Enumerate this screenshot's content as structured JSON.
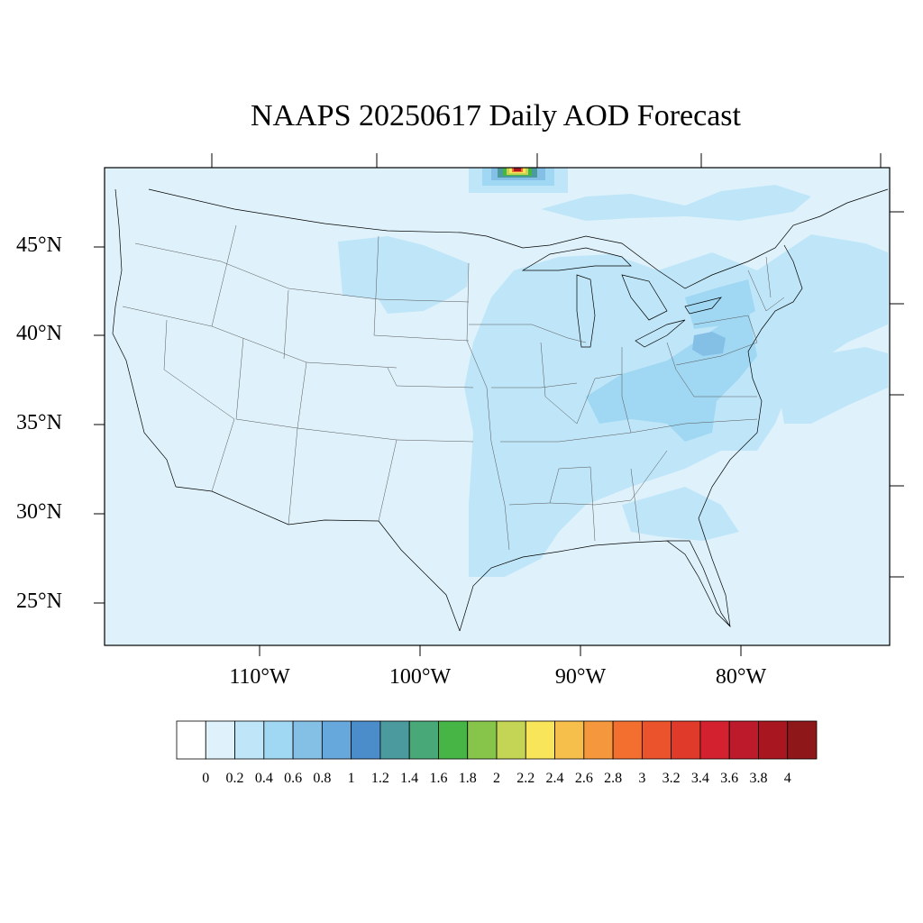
{
  "title": "NAAPS 20250617 Daily AOD Forecast",
  "map": {
    "region": "Continental United States",
    "lat_labels": [
      "45°N",
      "40°N",
      "35°N",
      "30°N",
      "25°N"
    ],
    "lon_labels": [
      "110°W",
      "100°W",
      "90°W",
      "80°W"
    ],
    "lat_range": [
      22.7,
      49.5
    ],
    "lon_range": [
      -119.5,
      -71.0
    ]
  },
  "colorbar": {
    "labels": [
      "0",
      "0.2",
      "0.4",
      "0.6",
      "0.8",
      "1",
      "1.2",
      "1.4",
      "1.6",
      "1.8",
      "2",
      "2.2",
      "2.4",
      "2.6",
      "2.8",
      "3",
      "3.2",
      "3.4",
      "3.6",
      "3.8",
      "4"
    ],
    "colors": [
      "#ffffff",
      "#dff2fb",
      "#bfe6f8",
      "#a0d8f3",
      "#84bfe6",
      "#66a7dc",
      "#4a8dca",
      "#4a9a9e",
      "#48a878",
      "#47b446",
      "#87c44a",
      "#c4d455",
      "#f8e55a",
      "#f6be4a",
      "#f5983d",
      "#f26f30",
      "#eb532c",
      "#e03a2a",
      "#d42130",
      "#bd1b2b",
      "#a8171f",
      "#8e1719"
    ]
  },
  "chart_data": {
    "type": "heatmap",
    "title": "NAAPS 20250617 Daily AOD Forecast",
    "variable": "AOD",
    "levels": [
      0,
      0.2,
      0.4,
      0.6,
      0.8,
      1,
      1.2,
      1.4,
      1.6,
      1.8,
      2,
      2.2,
      2.4,
      2.6,
      2.8,
      3,
      3.2,
      3.4,
      3.6,
      3.8,
      4
    ],
    "background_value": 0.1,
    "regions": [
      {
        "value": 0.3,
        "description": "northern plains / upper midwest band"
      },
      {
        "value": 0.3,
        "description": "mississippi valley to gulf coast"
      },
      {
        "value": 0.5,
        "description": "ohio valley / mid-atlantic"
      },
      {
        "value": 0.7,
        "description": "pennsylvania core"
      },
      {
        "value": 3.8,
        "description": "smoke plume peak near 49°N, 94°W"
      }
    ]
  }
}
